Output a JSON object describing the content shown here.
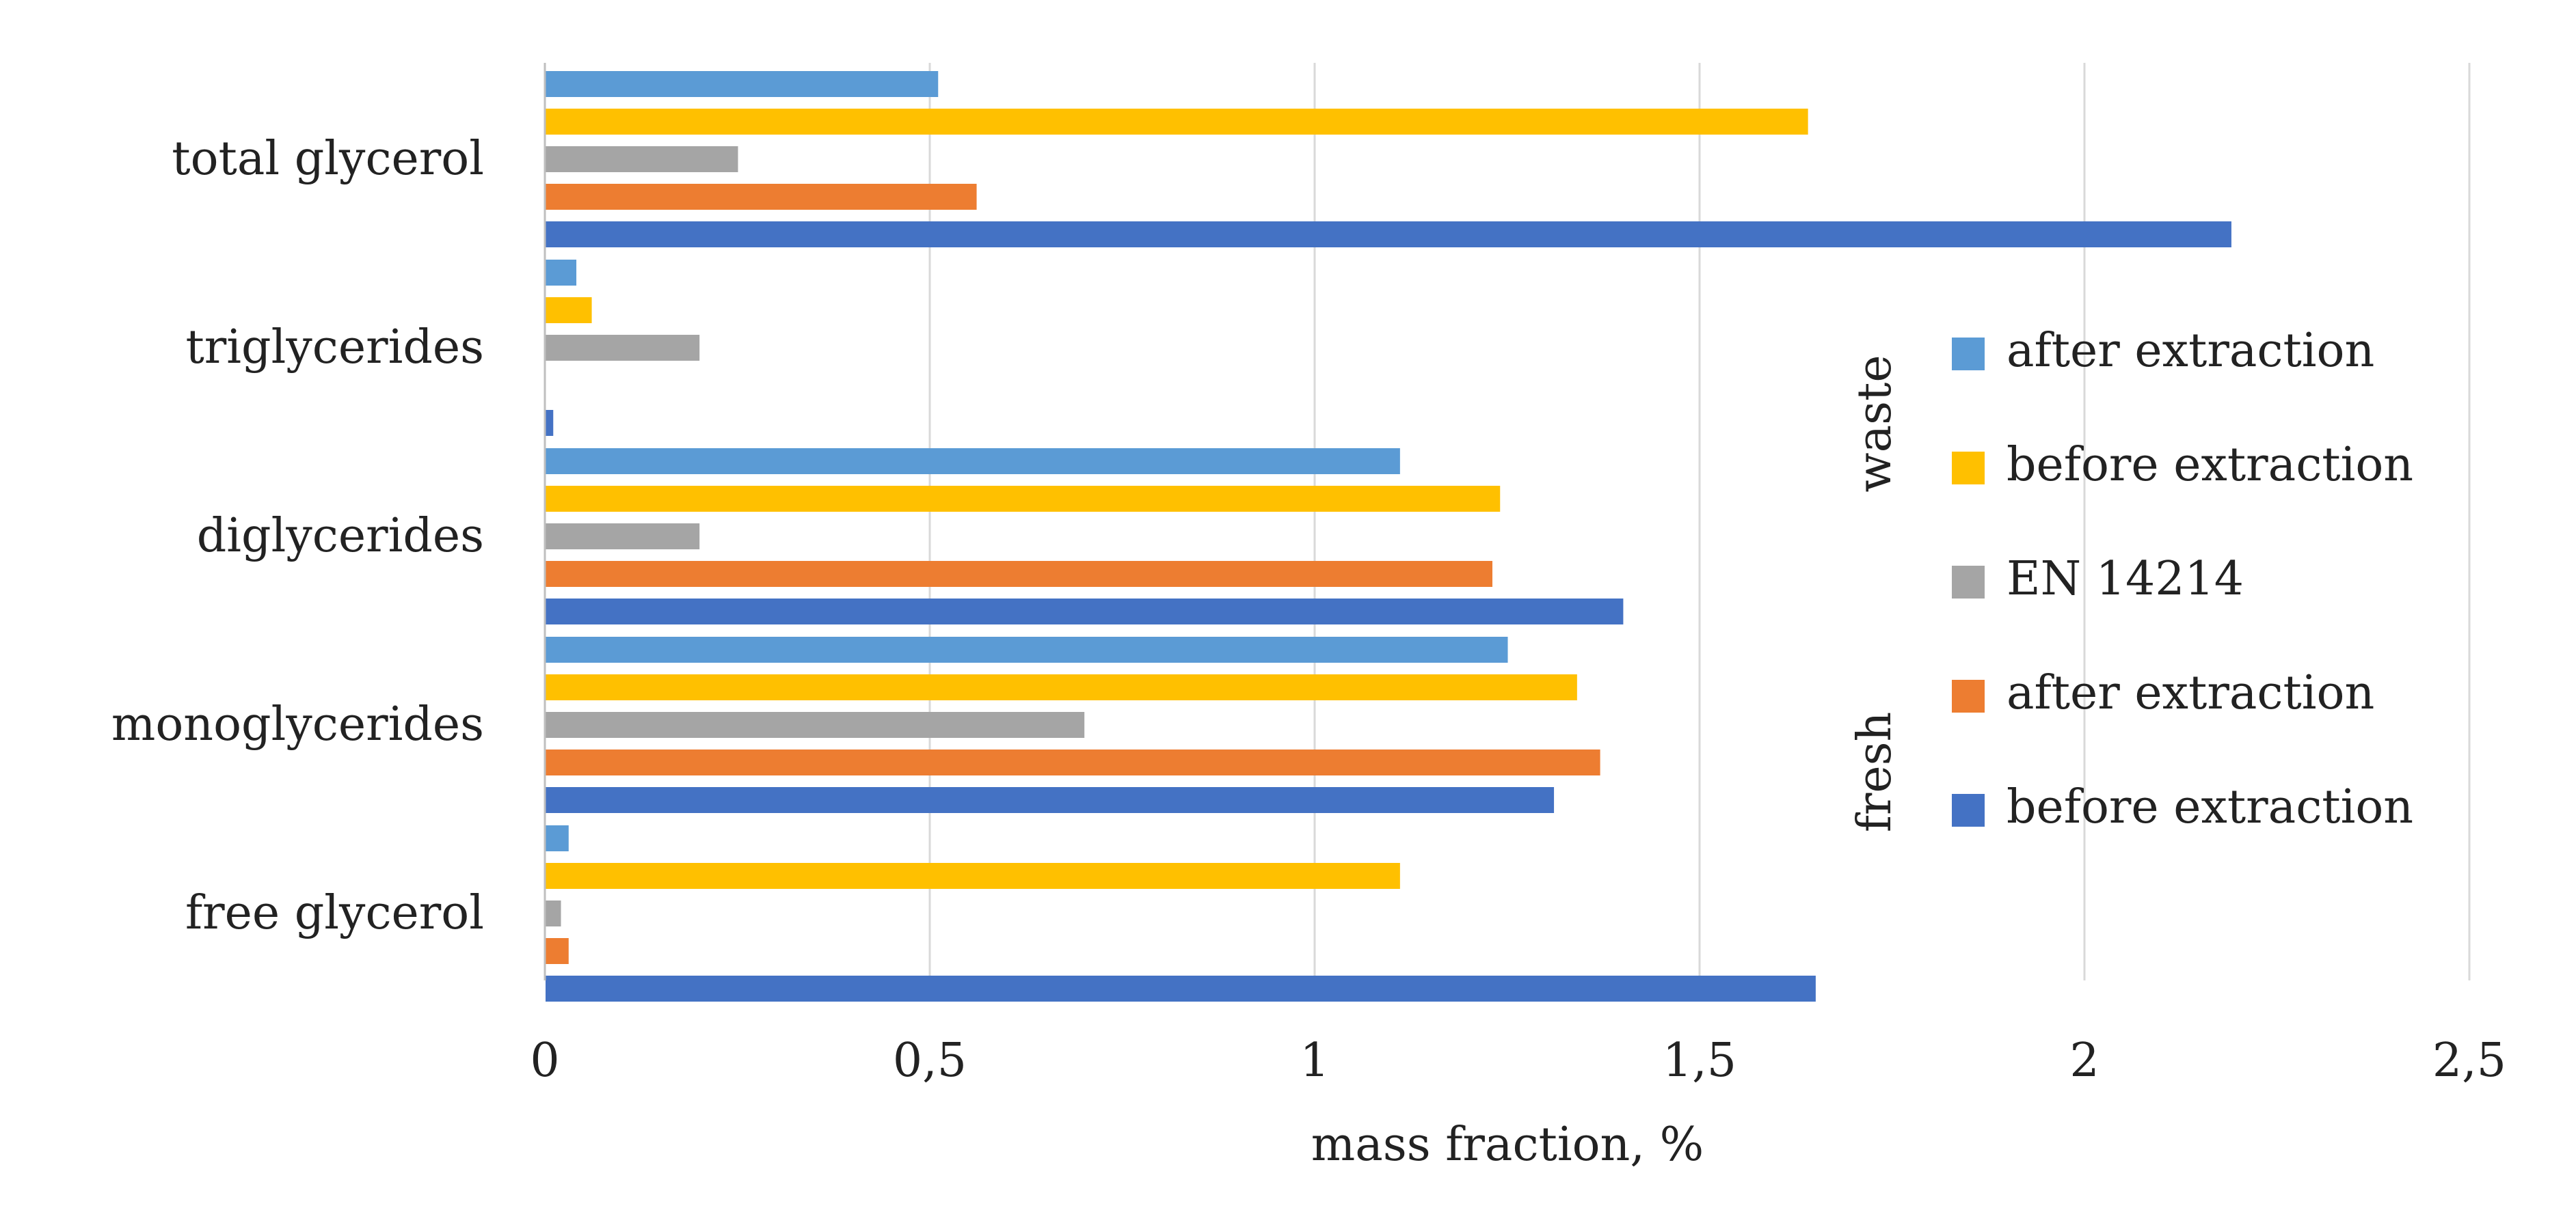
{
  "chart_data": {
    "type": "bar",
    "orientation": "horizontal",
    "categories": [
      "total glycerol",
      "triglycerides",
      "diglycerides",
      "monoglycerides",
      "free glycerol"
    ],
    "series": [
      {
        "name": "after extraction",
        "group": "waste",
        "color": "#5B9BD5",
        "values": [
          0.51,
          0.04,
          1.11,
          1.25,
          0.03
        ]
      },
      {
        "name": "before extraction",
        "group": "waste",
        "color": "#FFC000",
        "values": [
          1.64,
          0.06,
          1.24,
          1.34,
          1.11
        ]
      },
      {
        "name": "EN 14214",
        "group": "",
        "color": "#A5A5A5",
        "values": [
          0.25,
          0.2,
          0.2,
          0.7,
          0.02
        ]
      },
      {
        "name": "after extraction",
        "group": "fresh",
        "color": "#ED7D31",
        "values": [
          0.56,
          0.0,
          1.23,
          1.37,
          0.03
        ]
      },
      {
        "name": "before extraction",
        "group": "fresh",
        "color": "#4472C4",
        "values": [
          2.19,
          0.01,
          1.4,
          1.31,
          1.65
        ]
      }
    ],
    "xlim": [
      0,
      2.5
    ],
    "x_ticks": [
      0,
      0.5,
      1,
      1.5,
      2,
      2.5
    ],
    "x_tick_labels": [
      "0",
      "0,5",
      "1",
      "1,5",
      "2",
      "2,5"
    ],
    "xlabel": "mass fraction, %",
    "ylabel": "",
    "title": "",
    "grid": "vertical",
    "legend": {
      "position": "right",
      "groups": [
        {
          "label": "waste",
          "series_index": [
            0,
            1
          ]
        },
        {
          "label": "fresh",
          "series_index": [
            3,
            4
          ]
        }
      ]
    }
  }
}
